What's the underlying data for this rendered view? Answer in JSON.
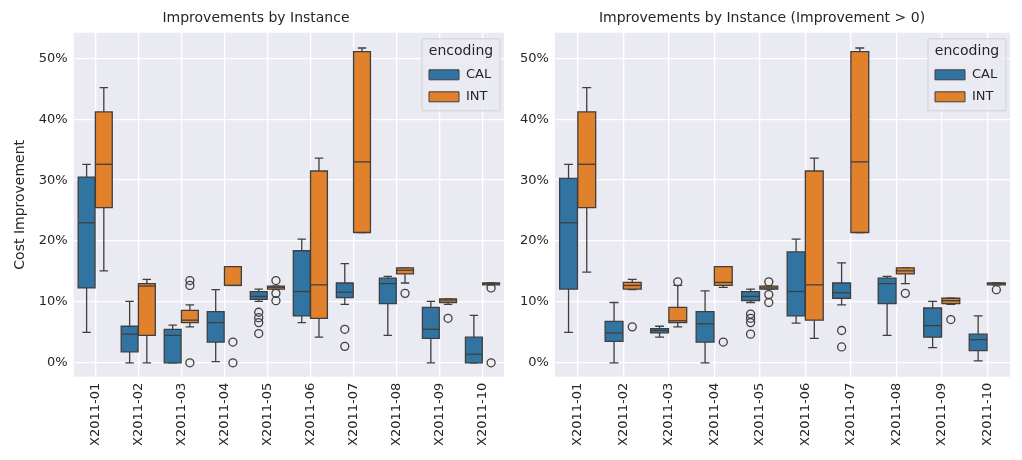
{
  "chart_data": [
    {
      "type": "box",
      "title": "Improvements by Instance",
      "ylabel": "Cost Improvement",
      "legend_title": "encoding",
      "legend": "top right",
      "grid": true,
      "categories": [
        "X2011-01",
        "X2011-02",
        "X2011-03",
        "X2011-04",
        "X2011-05",
        "X2011-06",
        "X2011-07",
        "X2011-08",
        "X2011-09",
        "X2011-10"
      ],
      "ylim": [
        -2.3,
        54.2
      ],
      "yticks": [
        {
          "value": 0,
          "label": "0%"
        },
        {
          "value": 10,
          "label": "10%"
        },
        {
          "value": 20,
          "label": "20%"
        },
        {
          "value": 30,
          "label": "30%"
        },
        {
          "value": 40,
          "label": "40%"
        },
        {
          "value": 50,
          "label": "50%"
        }
      ],
      "series": [
        {
          "name": "CAL",
          "color": "#3274a1",
          "boxes": [
            {
              "low": 5.0,
              "q1": 12.3,
              "median": 23.0,
              "q3": 30.5,
              "high": 32.6
            },
            {
              "low": 0,
              "q1": 1.8,
              "median": 4.7,
              "q3": 6.0,
              "high": 10.1
            },
            {
              "low": 0,
              "q1": 0,
              "median": 4.5,
              "q3": 5.5,
              "high": 6.2
            },
            {
              "low": 0.2,
              "q1": 3.4,
              "median": 6.6,
              "q3": 8.4,
              "high": 12.0
            },
            {
              "low": 10.1,
              "q1": 10.4,
              "median": 10.9,
              "q3": 11.7,
              "high": 12.1,
              "outliers": [
                8.3,
                7.4,
                6.6,
                4.8
              ]
            },
            {
              "low": 6.6,
              "q1": 7.7,
              "median": 11.7,
              "q3": 18.4,
              "high": 20.3
            },
            {
              "low": 9.6,
              "q1": 10.7,
              "median": 11.6,
              "q3": 13.1,
              "high": 16.3,
              "outliers": [
                5.5,
                2.7
              ]
            },
            {
              "low": 4.5,
              "q1": 9.7,
              "median": 13.0,
              "q3": 13.9,
              "high": 14.2
            },
            {
              "low": 0,
              "q1": 4.0,
              "median": 5.5,
              "q3": 9.1,
              "high": 10.1
            },
            {
              "low": 0,
              "q1": 0,
              "median": 1.4,
              "q3": 4.2,
              "high": 7.8
            }
          ]
        },
        {
          "name": "INT",
          "color": "#e1812c",
          "boxes": [
            {
              "low": 15.1,
              "q1": 25.5,
              "median": 32.6,
              "q3": 41.2,
              "high": 45.2
            },
            {
              "low": 0,
              "q1": 4.5,
              "median": 12.6,
              "q3": 13.0,
              "high": 13.7
            },
            {
              "low": 5.9,
              "q1": 6.6,
              "median": 7.0,
              "q3": 8.6,
              "high": 9.5,
              "outliers": [
                13.5,
                12.7,
                0
              ]
            },
            {
              "low": 12.7,
              "q1": 12.7,
              "median": 12.7,
              "q3": 15.8,
              "high": 15.8,
              "outliers": [
                3.4,
                0
              ]
            },
            {
              "low": 12.1,
              "q1": 12.1,
              "median": 12.4,
              "q3": 12.6,
              "high": 12.6,
              "outliers": [
                13.5,
                11.4,
                10.2
              ]
            },
            {
              "low": 4.2,
              "q1": 7.3,
              "median": 12.8,
              "q3": 31.5,
              "high": 33.6
            },
            {
              "low": 21.4,
              "q1": 21.4,
              "median": 33.0,
              "q3": 51.1,
              "high": 51.7
            },
            {
              "low": 13.1,
              "q1": 14.6,
              "median": 15.2,
              "q3": 15.6,
              "high": 15.6,
              "outliers": [
                11.4
              ]
            },
            {
              "low": 9.6,
              "q1": 9.9,
              "median": 10.3,
              "q3": 10.5,
              "high": 10.5,
              "outliers": [
                7.3
              ]
            },
            {
              "low": 12.8,
              "q1": 12.8,
              "median": 13.0,
              "q3": 13.1,
              "high": 13.1,
              "outliers": [
                12.3,
                0
              ]
            }
          ]
        }
      ]
    },
    {
      "type": "box",
      "title": "Improvements by Instance (Improvement > 0)",
      "legend_title": "encoding",
      "legend": "top right",
      "grid": true,
      "categories": [
        "X2011-01",
        "X2011-02",
        "X2011-03",
        "X2011-04",
        "X2011-05",
        "X2011-06",
        "X2011-07",
        "X2011-08",
        "X2011-09",
        "X2011-10"
      ],
      "ylim": [
        -2.3,
        54.2
      ],
      "yticks": [
        {
          "value": 0,
          "label": "0%"
        },
        {
          "value": 10,
          "label": "10%"
        },
        {
          "value": 20,
          "label": "20%"
        },
        {
          "value": 30,
          "label": "30%"
        },
        {
          "value": 40,
          "label": "40%"
        },
        {
          "value": 50,
          "label": "50%"
        }
      ],
      "series": [
        {
          "name": "CAL",
          "color": "#3274a1",
          "boxes": [
            {
              "low": 5.0,
              "q1": 12.1,
              "median": 23.0,
              "q3": 30.3,
              "high": 32.6
            },
            {
              "low": 0,
              "q1": 3.5,
              "median": 4.9,
              "q3": 6.8,
              "high": 9.9
            },
            {
              "low": 4.2,
              "q1": 4.9,
              "median": 5.3,
              "q3": 5.6,
              "high": 6.0
            },
            {
              "low": 0,
              "q1": 3.4,
              "median": 6.4,
              "q3": 8.4,
              "high": 11.8
            },
            {
              "low": 9.9,
              "q1": 10.2,
              "median": 10.9,
              "q3": 11.7,
              "high": 12.1,
              "outliers": [
                8.0,
                7.3,
                6.6,
                4.7
              ]
            },
            {
              "low": 6.5,
              "q1": 7.7,
              "median": 11.7,
              "q3": 18.2,
              "high": 20.3
            },
            {
              "low": 9.5,
              "q1": 10.6,
              "median": 11.5,
              "q3": 13.1,
              "high": 16.4,
              "outliers": [
                5.3,
                2.6
              ]
            },
            {
              "low": 4.5,
              "q1": 9.7,
              "median": 13.0,
              "q3": 13.9,
              "high": 14.2
            },
            {
              "low": 2.5,
              "q1": 4.2,
              "median": 6.1,
              "q3": 9.0,
              "high": 10.1
            },
            {
              "low": 0.3,
              "q1": 2.0,
              "median": 3.8,
              "q3": 4.7,
              "high": 7.7
            }
          ]
        },
        {
          "name": "INT",
          "color": "#e1812c",
          "boxes": [
            {
              "low": 14.9,
              "q1": 25.5,
              "median": 32.6,
              "q3": 41.2,
              "high": 45.2
            },
            {
              "low": 12.0,
              "q1": 12.1,
              "median": 12.7,
              "q3": 13.2,
              "high": 13.7,
              "outliers": [
                5.9
              ]
            },
            {
              "low": 5.9,
              "q1": 6.6,
              "median": 6.9,
              "q3": 9.1,
              "high": 12.7,
              "outliers": [
                13.3
              ]
            },
            {
              "low": 12.4,
              "q1": 12.7,
              "median": 13.2,
              "q3": 15.8,
              "high": 15.8,
              "outliers": [
                3.4
              ]
            },
            {
              "low": 12.1,
              "q1": 12.1,
              "median": 12.3,
              "q3": 12.6,
              "high": 12.6,
              "outliers": [
                13.3,
                11.2,
                9.9
              ]
            },
            {
              "low": 4.0,
              "q1": 7.0,
              "median": 12.8,
              "q3": 31.5,
              "high": 33.6
            },
            {
              "low": 21.4,
              "q1": 21.4,
              "median": 33.0,
              "q3": 51.1,
              "high": 51.7
            },
            {
              "low": 13.0,
              "q1": 14.6,
              "median": 15.1,
              "q3": 15.6,
              "high": 15.6,
              "outliers": [
                11.4
              ]
            },
            {
              "low": 9.6,
              "q1": 9.7,
              "median": 10.2,
              "q3": 10.6,
              "high": 10.6,
              "outliers": [
                7.1
              ]
            },
            {
              "low": 12.8,
              "q1": 12.8,
              "median": 13.0,
              "q3": 13.1,
              "high": 13.1,
              "outliers": [
                12.0
              ]
            }
          ]
        }
      ]
    }
  ]
}
